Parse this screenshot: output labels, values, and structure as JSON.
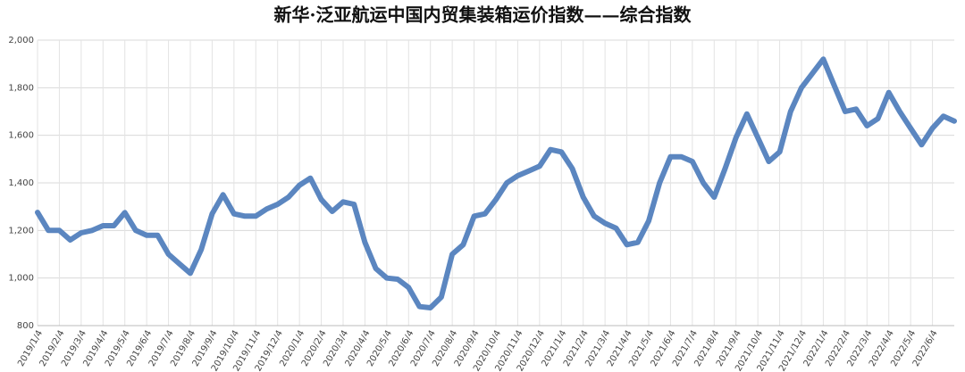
{
  "chart_data": {
    "type": "line",
    "title": "新华·泛亚航运中国内贸集装箱运价指数——综合指数",
    "categories": [
      "2019/1/4",
      null,
      "2019/2/4",
      null,
      "2019/3/4",
      null,
      "2019/4/4",
      null,
      "2019/5/4",
      null,
      "2019/6/4",
      null,
      "2019/7/4",
      null,
      "2019/8/4",
      null,
      "2019/9/4",
      null,
      "2019/10/4",
      null,
      "2019/11/4",
      null,
      "2019/12/4",
      null,
      "2020/1/4",
      null,
      "2020/2/4",
      null,
      "2020/3/4",
      null,
      "2020/4/4",
      null,
      "2020/5/4",
      null,
      "2020/6/4",
      null,
      "2020/7/4",
      null,
      "2020/8/4",
      null,
      "2020/9/4",
      null,
      "2020/10/4",
      null,
      "2020/11/4",
      null,
      "2020/12/4",
      null,
      "2021/1/4",
      null,
      "2021/2/4",
      null,
      "2021/3/4",
      null,
      "2021/4/4",
      null,
      "2021/5/4",
      null,
      "2021/6/4",
      null,
      "2021/7/4",
      null,
      "2021/8/4",
      null,
      "2021/9/4",
      null,
      "2021/10/4",
      null,
      "2021/11/4",
      null,
      "2021/12/4",
      null,
      "2022/1/4",
      null,
      "2022/2/4",
      null,
      "2022/3/4",
      null,
      "2022/4/4",
      null,
      "2022/5/4",
      null,
      "2022/6/4",
      null,
      null
    ],
    "series": [
      {
        "name": "综合指数",
        "color": "#5b86c0",
        "values": [
          1276,
          1200,
          1200,
          1160,
          1190,
          1200,
          1220,
          1220,
          1275,
          1200,
          1180,
          1180,
          1100,
          1060,
          1020,
          1120,
          1270,
          1350,
          1270,
          1260,
          1260,
          1290,
          1310,
          1340,
          1390,
          1420,
          1330,
          1280,
          1320,
          1310,
          1150,
          1040,
          1000,
          995,
          960,
          880,
          875,
          920,
          1100,
          1140,
          1260,
          1270,
          1330,
          1400,
          1430,
          1450,
          1470,
          1540,
          1530,
          1460,
          1340,
          1260,
          1230,
          1210,
          1140,
          1150,
          1240,
          1400,
          1510,
          1510,
          1490,
          1400,
          1340,
          1460,
          1590,
          1690,
          1590,
          1490,
          1530,
          1700,
          1800,
          1860,
          1920,
          1810,
          1700,
          1710,
          1640,
          1670,
          1780,
          1700,
          1630,
          1560,
          1630,
          1680,
          1660
        ]
      }
    ],
    "ylim": [
      800,
      2000
    ],
    "yticks": [
      {
        "value": 800,
        "label": "800"
      },
      {
        "value": 1000,
        "label": "1,000"
      },
      {
        "value": 1200,
        "label": "1,200"
      },
      {
        "value": 1400,
        "label": "1,400"
      },
      {
        "value": 1600,
        "label": "1,600"
      },
      {
        "value": 1800,
        "label": "1,800"
      },
      {
        "value": 2000,
        "label": "2,000"
      }
    ],
    "grid": true
  }
}
